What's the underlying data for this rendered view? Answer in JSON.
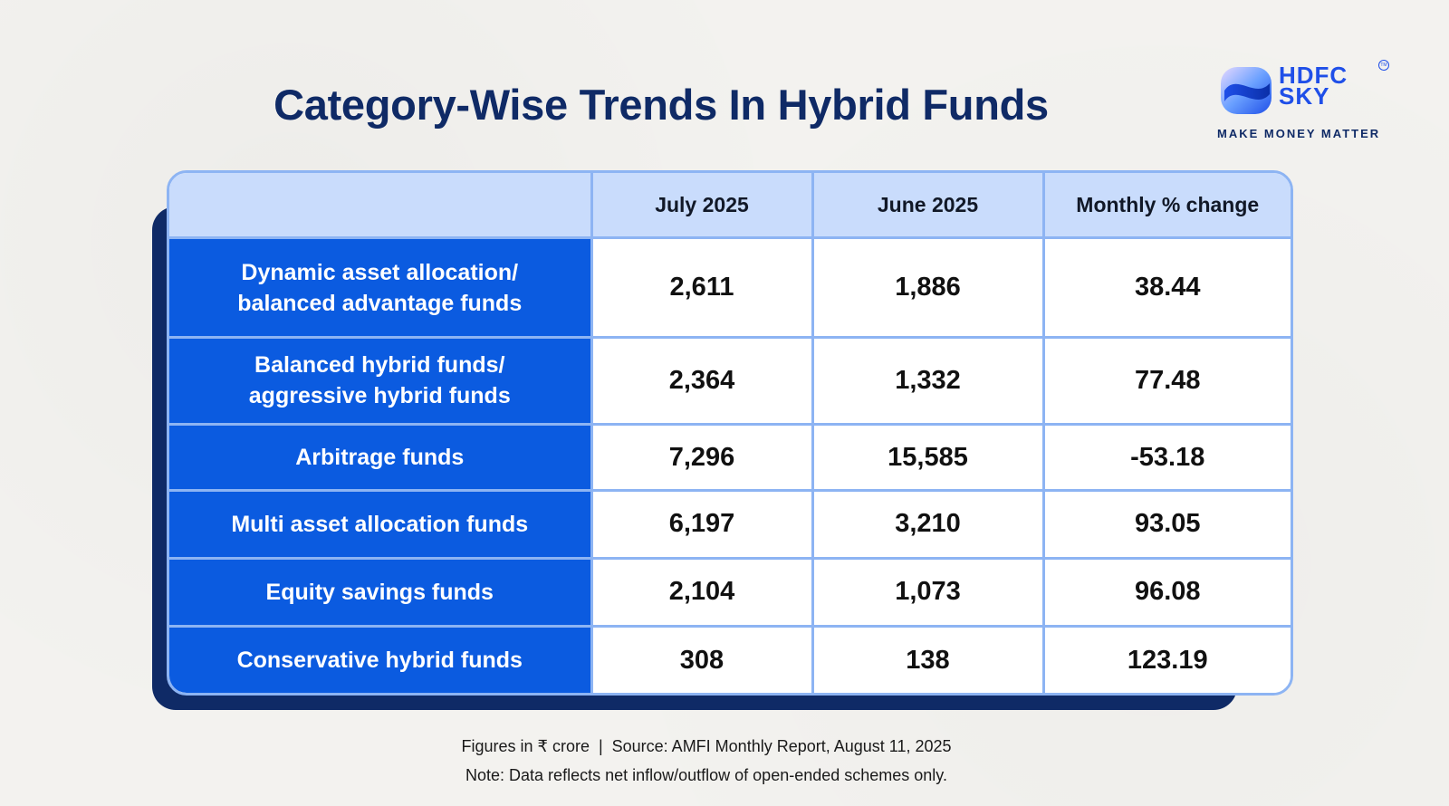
{
  "title": "Category-Wise Trends In Hybrid Funds",
  "brand": {
    "name_line1": "HDFC",
    "name_line2": "SKY",
    "tm": "TM",
    "tagline": "MAKE MONEY MATTER",
    "logo_icon": "hdfc-sky-logo",
    "colors": {
      "primary": "#1f4fe8",
      "navy": "#0f2a66"
    }
  },
  "table": {
    "columns": [
      "",
      "July 2025",
      "June 2025",
      "Monthly % change"
    ],
    "rows": [
      {
        "category": "Dynamic asset allocation/ balanced advantage funds",
        "july": "2,611",
        "june": "1,886",
        "change": "38.44"
      },
      {
        "category": "Balanced hybrid funds/ aggressive hybrid funds",
        "july": "2,364",
        "june": "1,332",
        "change": "77.48"
      },
      {
        "category": "Arbitrage funds",
        "july": "7,296",
        "june": "15,585",
        "change": "-53.18"
      },
      {
        "category": "Multi asset allocation funds",
        "july": "6,197",
        "june": "3,210",
        "change": "93.05"
      },
      {
        "category": "Equity savings funds",
        "july": "2,104",
        "june": "1,073",
        "change": "96.08"
      },
      {
        "category": "Conservative hybrid funds",
        "july": "308",
        "june": "138",
        "change": "123.19"
      }
    ],
    "colors": {
      "header_bg": "#c9dcfc",
      "category_bg": "#0b5be0",
      "border": "#8db4f3",
      "shadow": "#0f2a66"
    }
  },
  "footnotes": {
    "line1": "Figures in ₹ crore  |  Source: AMFI Monthly Report, August 11, 2025",
    "line2": "Note: Data reflects net inflow/outflow of open-ended schemes only."
  }
}
